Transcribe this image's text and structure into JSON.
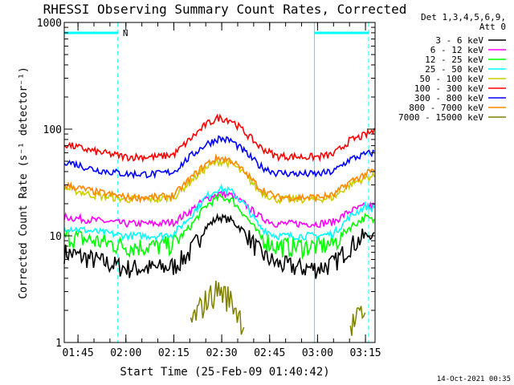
{
  "chart_data": {
    "type": "line",
    "title": "RHESSI Observing Summary Count Rates, Corrected",
    "xlabel": "Start Time (25-Feb-09 01:40:42)",
    "ylabel": "Corrected Count Rate (s⁻¹ detector⁻¹)",
    "yscale": "log",
    "ylim": [
      1,
      1000
    ],
    "xlim": [
      "01:40:42",
      "03:18:00"
    ],
    "x_ticks": [
      "01:45",
      "02:00",
      "02:15",
      "02:30",
      "02:45",
      "03:00",
      "03:15"
    ],
    "y_ticks": [
      "1",
      "10",
      "100",
      "1000"
    ],
    "legend_header": [
      "Det 1,3,4,5,6,9,",
      "Att 0"
    ],
    "legend_position": "right",
    "night_marker_label": "N",
    "night_intervals": [
      [
        "01:40:42",
        "01:57:30"
      ],
      [
        "02:59:00",
        "03:16:00"
      ]
    ],
    "annotation_lines": [
      "01:57:30",
      "02:59:00",
      "03:16:00"
    ],
    "x": [
      "01:41",
      "01:50",
      "02:00",
      "02:05",
      "02:10",
      "02:15",
      "02:20",
      "02:25",
      "02:29",
      "02:33",
      "02:37",
      "02:42",
      "02:47",
      "02:55",
      "03:00",
      "03:05",
      "03:10",
      "03:15",
      "03:17"
    ],
    "series": [
      {
        "name": "3 - 6 keV",
        "color": "#000000",
        "values": [
          7,
          6,
          5,
          5,
          5,
          5.2,
          7,
          12,
          15,
          14,
          11,
          7,
          5.5,
          5,
          5,
          5.5,
          8,
          10,
          10
        ]
      },
      {
        "name": "6 - 12 keV",
        "color": "#ff00ff",
        "values": [
          15,
          14,
          13,
          13,
          13,
          13.5,
          17,
          22,
          25,
          24,
          20,
          15,
          13,
          13,
          13,
          13.5,
          17,
          19,
          19
        ]
      },
      {
        "name": "12 - 25 keV",
        "color": "#00ff00",
        "values": [
          10,
          9,
          8,
          8,
          8,
          8.5,
          12,
          19,
          23,
          22,
          16,
          10,
          8,
          8,
          8,
          8.5,
          12,
          15,
          14
        ]
      },
      {
        "name": "25 - 50 keV",
        "color": "#00ffff",
        "values": [
          12,
          11,
          10,
          10,
          10,
          10.5,
          15,
          23,
          28,
          26,
          20,
          12,
          10,
          10,
          10,
          10.5,
          15,
          19,
          18
        ]
      },
      {
        "name": "50 - 100 keV",
        "color": "#cccc00",
        "values": [
          28,
          24,
          22,
          22,
          22,
          23,
          32,
          43,
          50,
          48,
          38,
          26,
          22,
          22,
          22,
          23,
          30,
          35,
          36
        ]
      },
      {
        "name": "100 - 300 keV",
        "color": "#ff0000",
        "values": [
          72,
          62,
          55,
          55,
          55,
          58,
          80,
          110,
          128,
          122,
          95,
          68,
          56,
          55,
          55,
          58,
          78,
          88,
          95
        ]
      },
      {
        "name": "300 - 800 keV",
        "color": "#0000ff",
        "values": [
          50,
          42,
          38,
          38,
          38,
          40,
          55,
          72,
          82,
          78,
          62,
          45,
          39,
          38,
          38,
          40,
          52,
          58,
          60
        ]
      },
      {
        "name": "800 - 7000 keV",
        "color": "#ff8800",
        "values": [
          30,
          26,
          23,
          23,
          23,
          24,
          34,
          47,
          54,
          51,
          40,
          28,
          23,
          23,
          23,
          24,
          32,
          38,
          40
        ]
      },
      {
        "name": "7000 - 15000 keV",
        "color": "#808000",
        "values": [
          null,
          null,
          null,
          null,
          null,
          null,
          1.5,
          2.5,
          3.2,
          2.5,
          1.5,
          null,
          null,
          null,
          null,
          null,
          1.4,
          2.0,
          null
        ]
      }
    ]
  },
  "footer": {
    "timestamp": "14-Oct-2021 00:35"
  }
}
